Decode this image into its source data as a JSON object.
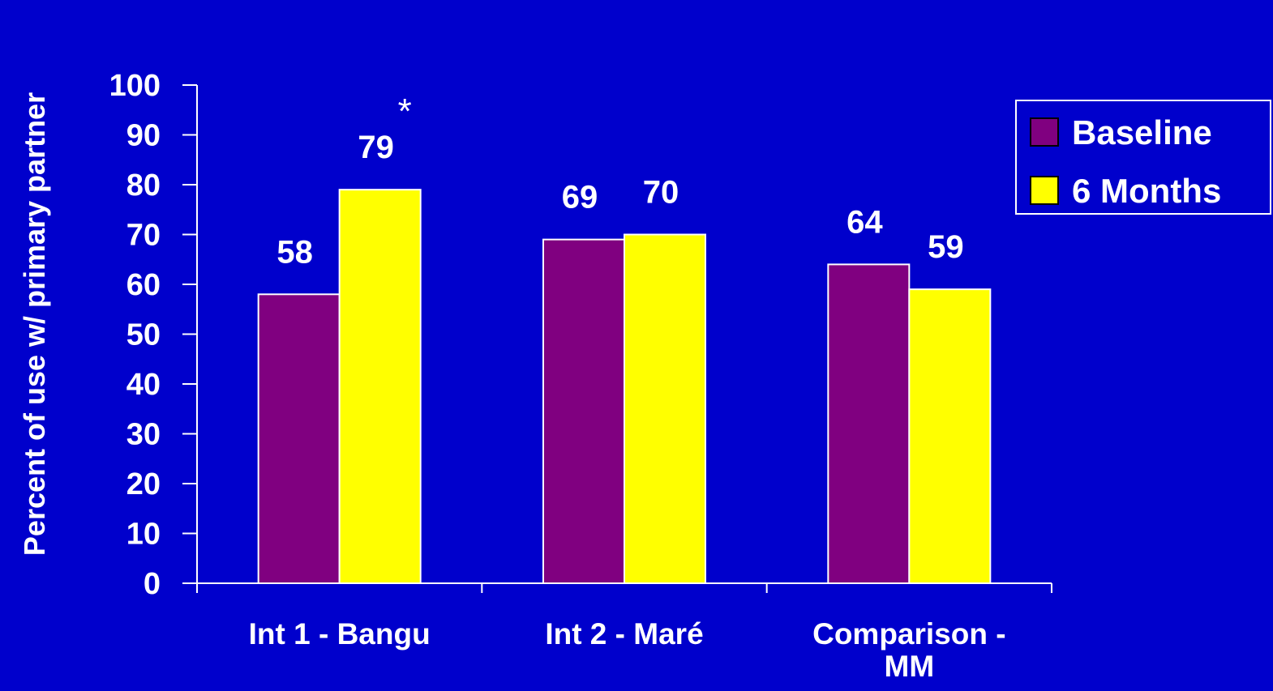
{
  "chart_data": {
    "type": "bar",
    "title": "",
    "ylabel": "Percent of use w/ primary partner",
    "xlabel": "",
    "ylim": [
      0,
      100
    ],
    "yticks": [
      0,
      10,
      20,
      30,
      40,
      50,
      60,
      70,
      80,
      90,
      100
    ],
    "categories": [
      "Int 1 - Bangu",
      "Int 2 - Maré",
      "Comparison - MM"
    ],
    "category_lines": [
      [
        "Int 1 - Bangu"
      ],
      [
        "Int 2 - Maré"
      ],
      [
        "Comparison -",
        "MM"
      ]
    ],
    "series": [
      {
        "name": "Baseline",
        "values": [
          58,
          69,
          64
        ],
        "color": "#800080",
        "labels": [
          "58",
          "69",
          "64"
        ],
        "marks": [
          "",
          "",
          ""
        ]
      },
      {
        "name": "6 Months",
        "values": [
          79,
          70,
          59
        ],
        "color": "#ffff00",
        "labels": [
          "79",
          "70",
          "59"
        ],
        "marks": [
          "*",
          "",
          ""
        ]
      }
    ],
    "legend_position": "top-right",
    "grid": false,
    "colors": {
      "background": "#0000cc",
      "axis": "#ffffff",
      "text": "#ffffff"
    }
  }
}
